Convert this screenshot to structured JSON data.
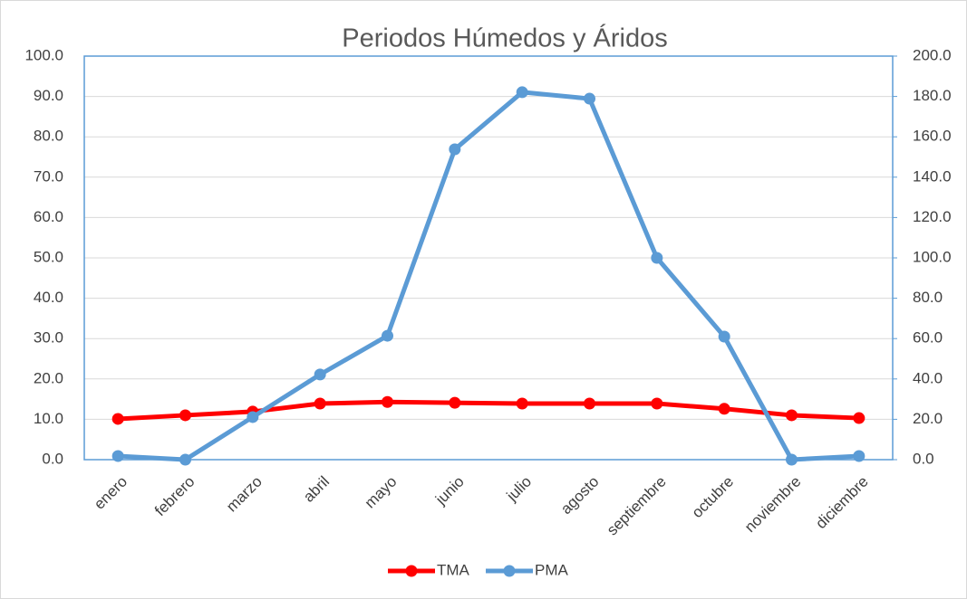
{
  "chart_data": {
    "type": "line",
    "title": "Periodos Húmedos y Áridos",
    "categories": [
      "enero",
      "febrero",
      "marzo",
      "abril",
      "mayo",
      "junio",
      "julio",
      "agosto",
      "septiembre",
      "octubre",
      "noviembre",
      "diciembre"
    ],
    "series": [
      {
        "name": "TMA",
        "color": "#ff0000",
        "values": [
          10.1,
          11.0,
          11.9,
          13.9,
          14.3,
          14.1,
          13.9,
          13.9,
          13.9,
          12.6,
          11.0,
          10.3
        ]
      },
      {
        "name": "PMA",
        "color": "#5b9bd5",
        "axis": "y2",
        "values": [
          1.8,
          0,
          21.1,
          42.2,
          61.4,
          153.8,
          182.1,
          178.9,
          100,
          61,
          0,
          1.8
        ]
      }
    ],
    "ylim": [
      0,
      100
    ],
    "yticks": [
      {
        "value": 0,
        "label": "0.0"
      },
      {
        "value": 10,
        "label": "10.0"
      },
      {
        "value": 20,
        "label": "20.0"
      },
      {
        "value": 30,
        "label": "30.0"
      },
      {
        "value": 40,
        "label": "40.0"
      },
      {
        "value": 50,
        "label": "50.0"
      },
      {
        "value": 60,
        "label": "60.0"
      },
      {
        "value": 70,
        "label": "70.0"
      },
      {
        "value": 80,
        "label": "80.0"
      },
      {
        "value": 90,
        "label": "90.0"
      },
      {
        "value": 100,
        "label": "100.0"
      }
    ],
    "y2lim": [
      0,
      200
    ],
    "y2ticks": [
      {
        "value": 0,
        "label": "0.0"
      },
      {
        "value": 20,
        "label": "20.0"
      },
      {
        "value": 40,
        "label": "40.0"
      },
      {
        "value": 60,
        "label": "60.0"
      },
      {
        "value": 80,
        "label": "80.0"
      },
      {
        "value": 100,
        "label": "100.0"
      },
      {
        "value": 120,
        "label": "120.0"
      },
      {
        "value": 140,
        "label": "140.0"
      },
      {
        "value": 160,
        "label": "160.0"
      },
      {
        "value": 180,
        "label": "180.0"
      },
      {
        "value": 200,
        "label": "200.0"
      }
    ],
    "grid": true,
    "legend": "bottom"
  }
}
